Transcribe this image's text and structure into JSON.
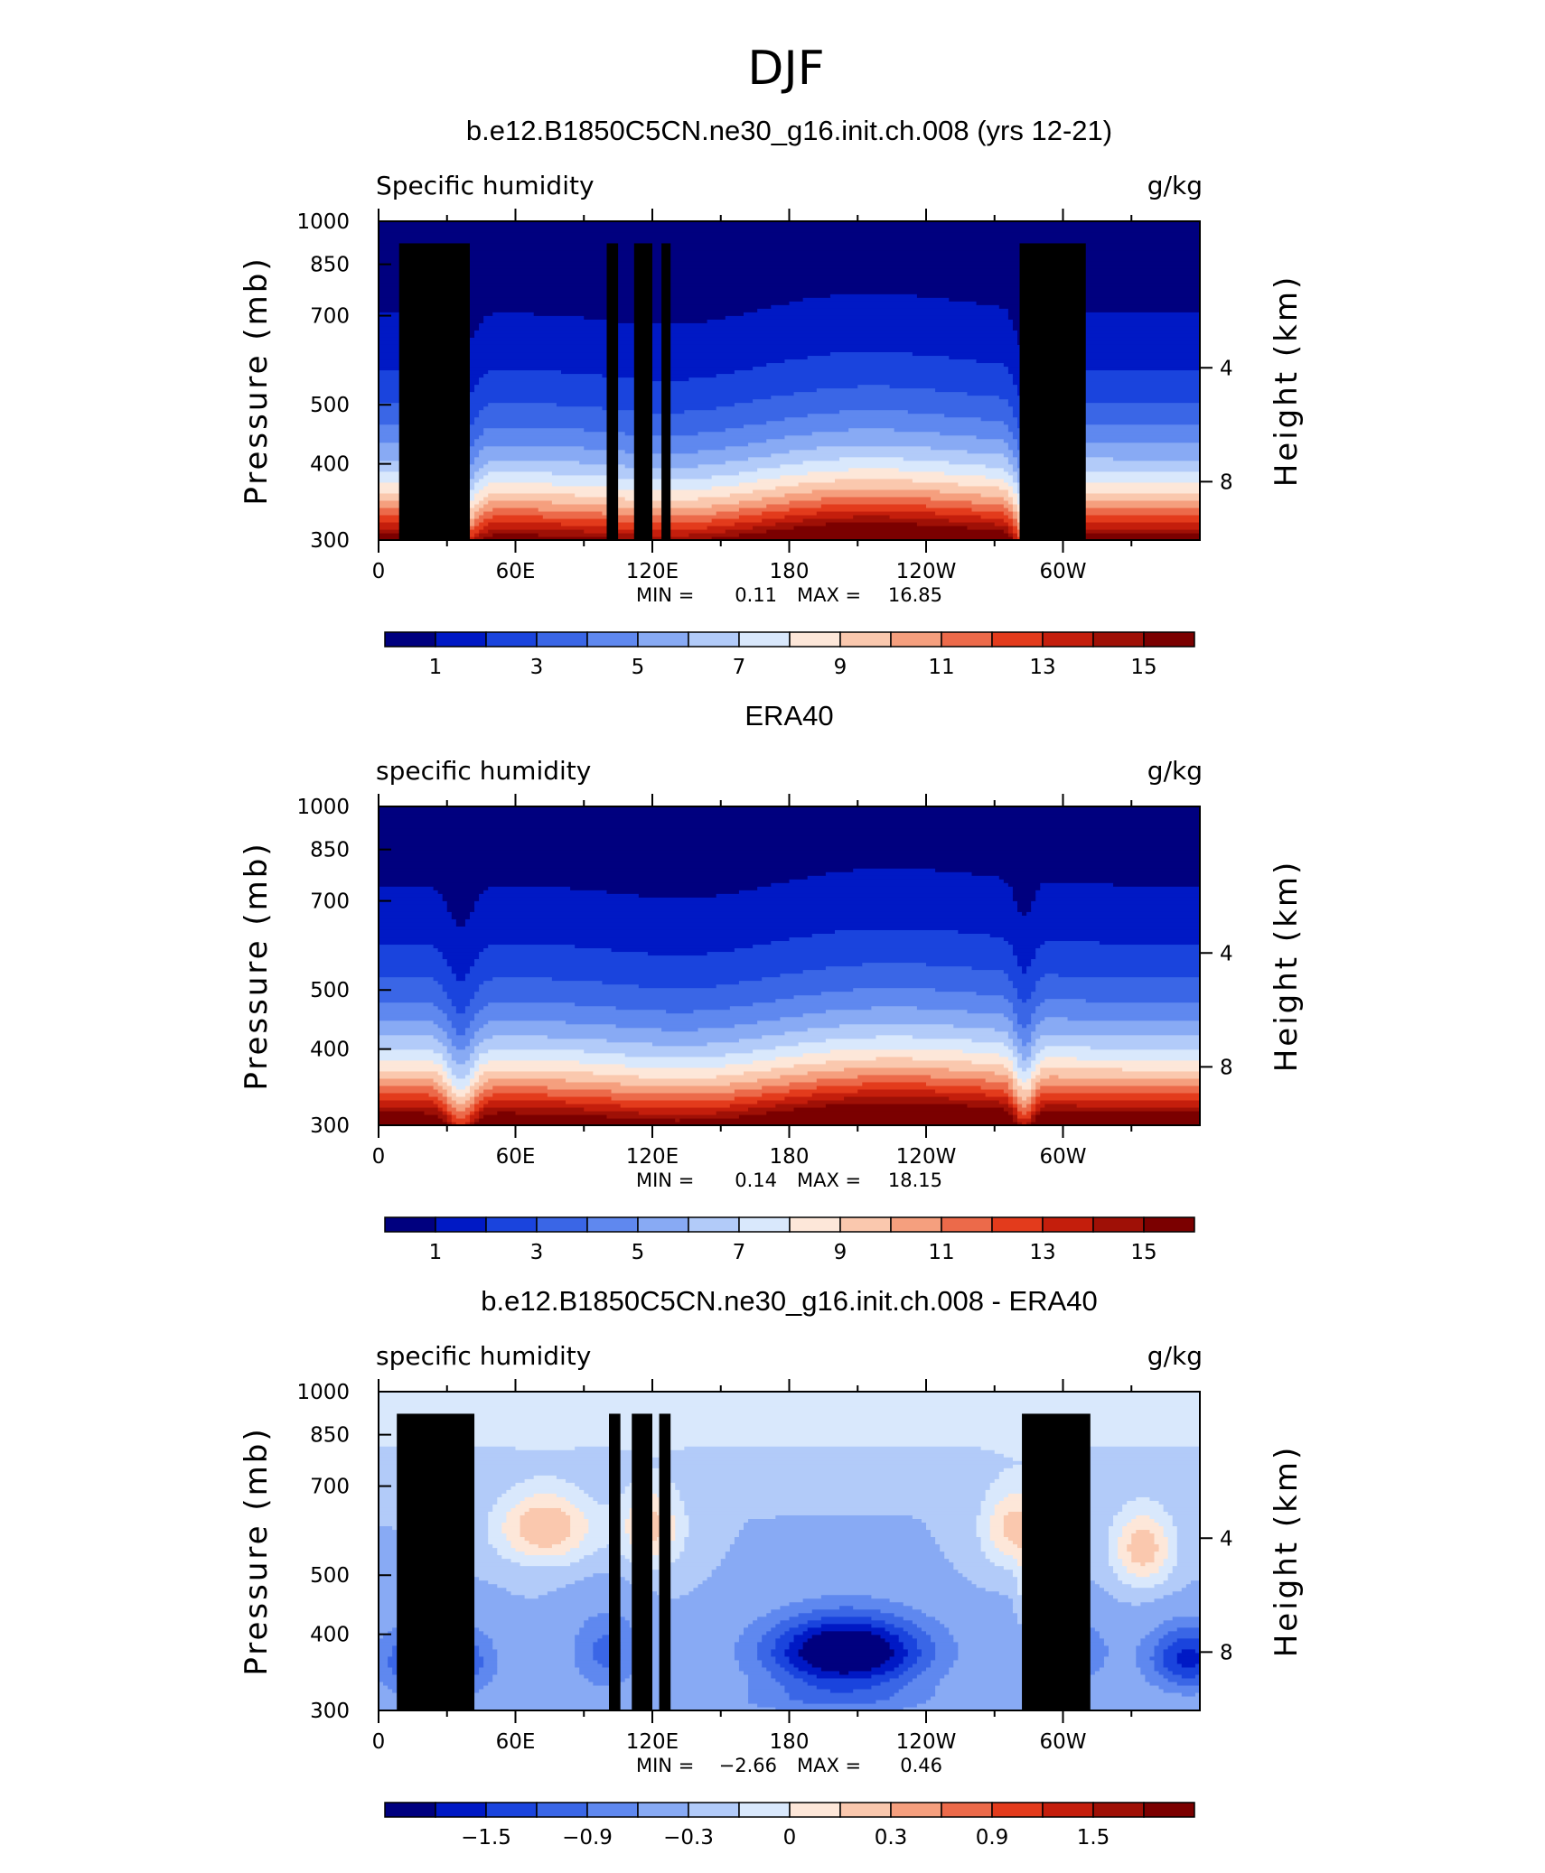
{
  "figure": {
    "title": "DJF"
  },
  "colors": {
    "palette": [
      "#00007f",
      "#0019c5",
      "#1a44dd",
      "#3a66e6",
      "#5f88ef",
      "#88aaf4",
      "#b2cbf9",
      "#d9e8fc",
      "#fde7d9",
      "#fac8ae",
      "#f59f7e",
      "#ec6a4a",
      "#e33b1c",
      "#c41e0c",
      "#9f1006",
      "#7b0000"
    ],
    "terrain": "#000000"
  },
  "chart_data": [
    {
      "type": "heatmap",
      "title": "b.e12.B1850C5CN.ne30_g16.init.ch.008 (yrs 12-21)",
      "left_label": "Specific humidity",
      "right_label": "g/kg",
      "ylabel": "Pressure (mb)",
      "ylabel_right": "Height (km)",
      "x_ticks": [
        "0",
        "60E",
        "120E",
        "180",
        "120W",
        "60W"
      ],
      "x_tick_values": [
        0,
        60,
        120,
        180,
        240,
        300
      ],
      "xlim": [
        0,
        360
      ],
      "y_ticks": [
        "300",
        "400",
        "500",
        "700",
        "850",
        "1000"
      ],
      "y_tick_values": [
        300,
        400,
        500,
        700,
        850,
        1000
      ],
      "ylim": [
        1000,
        300
      ],
      "y_scale": "log",
      "right_ticks": [
        "8",
        "4"
      ],
      "right_tick_pressures": [
        374,
        575
      ],
      "stats": {
        "min_label": "MIN =",
        "min": "0.11",
        "max_label": "MAX =",
        "max": "16.85"
      },
      "colorbar": {
        "labels": [
          "1",
          "3",
          "5",
          "7",
          "9",
          "11",
          "13",
          "15"
        ],
        "levels": [
          0,
          1,
          2,
          3,
          4,
          5,
          6,
          7,
          8,
          9,
          10,
          11,
          12,
          13,
          14,
          15,
          16
        ]
      },
      "terrain_blocks": [
        {
          "lon0": 9,
          "lon1": 40,
          "p_top": 920
        },
        {
          "lon0": 28,
          "lon1": 39,
          "p_top": 850
        },
        {
          "lon0": 100,
          "lon1": 105,
          "p_top": 920
        },
        {
          "lon0": 112,
          "lon1": 120,
          "p_top": 920
        },
        {
          "lon0": 124,
          "lon1": 128,
          "p_top": 920
        },
        {
          "lon0": 281,
          "lon1": 310,
          "p_top": 920
        }
      ]
    },
    {
      "type": "heatmap",
      "title": "ERA40",
      "left_label": "specific humidity",
      "right_label": "g/kg",
      "ylabel": "Pressure (mb)",
      "ylabel_right": "Height (km)",
      "x_ticks": [
        "0",
        "60E",
        "120E",
        "180",
        "120W",
        "60W"
      ],
      "x_tick_values": [
        0,
        60,
        120,
        180,
        240,
        300
      ],
      "xlim": [
        0,
        360
      ],
      "y_ticks": [
        "300",
        "400",
        "500",
        "700",
        "850",
        "1000"
      ],
      "y_tick_values": [
        300,
        400,
        500,
        700,
        850,
        1000
      ],
      "ylim": [
        1000,
        300
      ],
      "y_scale": "log",
      "right_ticks": [
        "8",
        "4"
      ],
      "right_tick_pressures": [
        374,
        575
      ],
      "stats": {
        "min_label": "MIN =",
        "min": "0.14",
        "max_label": "MAX =",
        "max": "18.15"
      },
      "colorbar": {
        "labels": [
          "1",
          "3",
          "5",
          "7",
          "9",
          "11",
          "13",
          "15"
        ],
        "levels": [
          0,
          1,
          2,
          3,
          4,
          5,
          6,
          7,
          8,
          9,
          10,
          11,
          12,
          13,
          14,
          15,
          16
        ]
      },
      "terrain_blocks": []
    },
    {
      "type": "heatmap",
      "title": "b.e12.B1850C5CN.ne30_g16.init.ch.008 - ERA40",
      "left_label": "specific humidity",
      "right_label": "g/kg",
      "ylabel": "Pressure (mb)",
      "ylabel_right": "Height (km)",
      "x_ticks": [
        "0",
        "60E",
        "120E",
        "180",
        "120W",
        "60W"
      ],
      "x_tick_values": [
        0,
        60,
        120,
        180,
        240,
        300
      ],
      "xlim": [
        0,
        360
      ],
      "y_ticks": [
        "300",
        "400",
        "500",
        "700",
        "850",
        "1000"
      ],
      "y_tick_values": [
        300,
        400,
        500,
        700,
        850,
        1000
      ],
      "ylim": [
        1000,
        300
      ],
      "y_scale": "log",
      "right_ticks": [
        "8",
        "4"
      ],
      "right_tick_pressures": [
        374,
        575
      ],
      "stats": {
        "min_label": "MIN =",
        "min": "−2.66",
        "max_label": "MAX =",
        "max": "0.46"
      },
      "colorbar": {
        "labels": [
          "−1.5",
          "−0.9",
          "−0.3",
          "0",
          "0.3",
          "0.9",
          "1.5"
        ],
        "levels": [
          -2.1,
          -1.8,
          -1.5,
          -1.2,
          -0.9,
          -0.6,
          -0.3,
          -0.15,
          0,
          0.15,
          0.3,
          0.6,
          0.9,
          1.2,
          1.5,
          1.8,
          2.1
        ]
      },
      "terrain_blocks": [
        {
          "lon0": 8,
          "lon1": 42,
          "p_top": 920
        },
        {
          "lon0": 28,
          "lon1": 40,
          "p_top": 850
        },
        {
          "lon0": 101,
          "lon1": 106,
          "p_top": 920
        },
        {
          "lon0": 111,
          "lon1": 120,
          "p_top": 920
        },
        {
          "lon0": 123,
          "lon1": 128,
          "p_top": 920
        },
        {
          "lon0": 282,
          "lon1": 312,
          "p_top": 920
        }
      ]
    }
  ]
}
